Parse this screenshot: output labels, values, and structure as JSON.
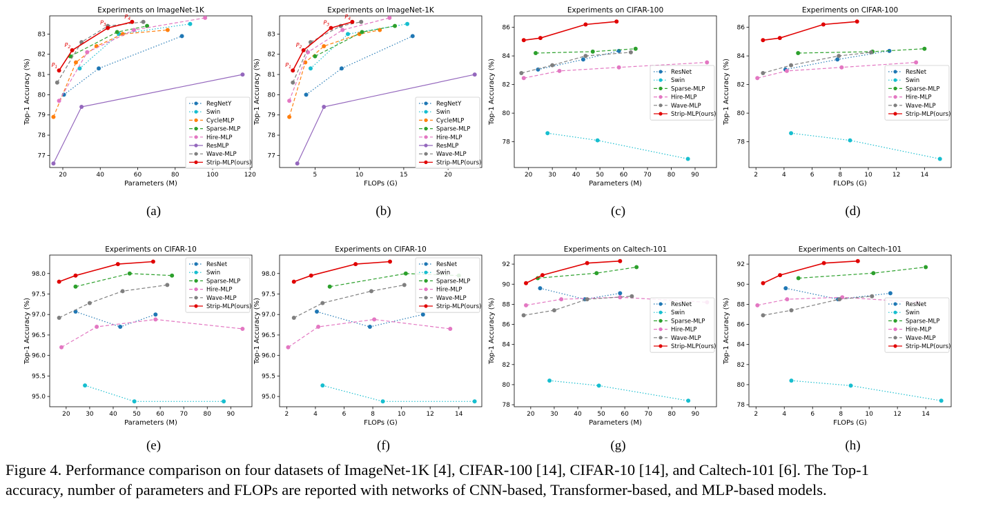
{
  "caption": {
    "line1": "Figure 4. Performance comparison on four datasets of ImageNet-1K [4], CIFAR-100 [14], CIFAR-10 [14], and Caltech-101 [6]. The Top-1",
    "line2": "accuracy, number of parameters and FLOPs are reported with networks of CNN-based, Transformer-based, and MLP-based models."
  },
  "colors": {
    "RegNetY": "#1f77b4",
    "ResNet": "#1f77b4",
    "Swin": "#17becf",
    "CycleMLP": "#ff7f0e",
    "Sparse-MLP": "#2ca02c",
    "Hire-MLP": "#e377c2",
    "ResMLP": "#9467bd",
    "Wave-MLP": "#7f7f7f",
    "Strip-MLP(ours)": "#e00000"
  },
  "chart_data": [
    {
      "id": "a",
      "type": "line",
      "sublabel": "(a)",
      "title": "Experiments on ImageNet-1K",
      "xlabel": "Parameters (M)",
      "ylabel": "Top-1 Accuracy (%)",
      "xlim": [
        13,
        121
      ],
      "ylim": [
        76.4,
        83.9
      ],
      "xticks": [
        20,
        40,
        60,
        80,
        100,
        120
      ],
      "yticks": [
        77,
        78,
        79,
        80,
        81,
        82,
        83
      ],
      "series": [
        {
          "name": "RegNetY",
          "x": [
            20.6,
            39.2,
            83.6
          ],
          "y": [
            80.0,
            81.3,
            82.9
          ]
        },
        {
          "name": "Swin",
          "x": [
            29,
            50,
            88
          ],
          "y": [
            81.3,
            83.0,
            83.5
          ]
        },
        {
          "name": "CycleMLP",
          "x": [
            15,
            27,
            38,
            52,
            76
          ],
          "y": [
            78.9,
            81.6,
            82.4,
            83.0,
            83.2
          ]
        },
        {
          "name": "Sparse-MLP",
          "x": [
            24,
            49,
            65
          ],
          "y": [
            81.9,
            83.1,
            83.4
          ]
        },
        {
          "name": "Hire-MLP",
          "x": [
            18,
            33,
            58,
            96
          ],
          "y": [
            79.7,
            82.1,
            83.2,
            83.8
          ]
        },
        {
          "name": "ResMLP",
          "x": [
            15,
            30,
            116
          ],
          "y": [
            76.6,
            79.4,
            81.0
          ]
        },
        {
          "name": "Wave-MLP",
          "x": [
            17,
            30,
            44,
            63
          ],
          "y": [
            80.6,
            82.6,
            83.4,
            83.6
          ]
        },
        {
          "name": "Strip-MLP(ours)",
          "x": [
            18,
            25,
            44,
            57
          ],
          "y": [
            81.2,
            82.2,
            83.3,
            83.6
          ]
        }
      ],
      "point_labels": [
        "P1",
        "P2",
        "P3",
        "P4"
      ],
      "legend": "lower-right"
    },
    {
      "id": "b",
      "type": "line",
      "sublabel": "(b)",
      "title": "Experiments on ImageNet-1K",
      "xlabel": "FLOPs (G)",
      "ylabel": "Top-1 Accuracy (%)",
      "xlim": [
        1.0,
        23.8
      ],
      "ylim": [
        76.4,
        83.9
      ],
      "xticks": [
        5,
        10,
        15,
        20
      ],
      "yticks": [
        77,
        78,
        79,
        80,
        81,
        82,
        83
      ],
      "series": [
        {
          "name": "RegNetY",
          "x": [
            4.0,
            8.0,
            16.0
          ],
          "y": [
            80.0,
            81.3,
            82.9
          ]
        },
        {
          "name": "Swin",
          "x": [
            4.5,
            8.7,
            15.4
          ],
          "y": [
            81.3,
            83.0,
            83.5
          ]
        },
        {
          "name": "CycleMLP",
          "x": [
            2.1,
            3.9,
            6.0,
            10.0,
            12.3
          ],
          "y": [
            78.9,
            81.6,
            82.4,
            83.0,
            83.2
          ]
        },
        {
          "name": "Sparse-MLP",
          "x": [
            5.0,
            10.3,
            14.0
          ],
          "y": [
            81.9,
            83.1,
            83.4
          ]
        },
        {
          "name": "Hire-MLP",
          "x": [
            2.1,
            4.2,
            8.1,
            13.4
          ],
          "y": [
            79.7,
            82.1,
            83.2,
            83.8
          ]
        },
        {
          "name": "ResMLP",
          "x": [
            3.0,
            6.0,
            23.0
          ],
          "y": [
            76.6,
            79.4,
            81.0
          ]
        },
        {
          "name": "Wave-MLP",
          "x": [
            2.5,
            4.5,
            7.9,
            10.2
          ],
          "y": [
            80.6,
            82.6,
            83.4,
            83.6
          ]
        },
        {
          "name": "Strip-MLP(ours)",
          "x": [
            2.5,
            3.7,
            6.8,
            9.2
          ],
          "y": [
            81.2,
            82.2,
            83.3,
            83.6
          ]
        }
      ],
      "point_labels": [
        "P1",
        "P2",
        "P3",
        "P4"
      ],
      "legend": "lower-right"
    },
    {
      "id": "c",
      "type": "line",
      "sublabel": "(c)",
      "title": "Experiments on CIFAR-100",
      "xlabel": "Parameters (M)",
      "ylabel": "Top-1 Accuracy (%)",
      "xlim": [
        14,
        99
      ],
      "ylim": [
        76.2,
        86.8
      ],
      "xticks": [
        20,
        30,
        40,
        50,
        60,
        70,
        80,
        90
      ],
      "yticks": [
        78,
        80,
        82,
        84,
        86
      ],
      "series": [
        {
          "name": "ResNet",
          "x": [
            24,
            43,
            58
          ],
          "y": [
            83.05,
            83.75,
            84.35
          ]
        },
        {
          "name": "Swin",
          "x": [
            28,
            49,
            87
          ],
          "y": [
            78.6,
            78.1,
            76.8
          ]
        },
        {
          "name": "Sparse-MLP",
          "x": [
            23,
            47,
            65
          ],
          "y": [
            84.2,
            84.3,
            84.5
          ]
        },
        {
          "name": "Hire-MLP",
          "x": [
            18,
            33,
            58,
            95
          ],
          "y": [
            82.45,
            82.95,
            83.2,
            83.55
          ]
        },
        {
          "name": "Wave-MLP",
          "x": [
            17,
            30,
            44,
            63
          ],
          "y": [
            82.8,
            83.35,
            84.0,
            84.25
          ]
        },
        {
          "name": "Strip-MLP(ours)",
          "x": [
            18,
            25,
            44,
            57
          ],
          "y": [
            85.1,
            85.25,
            86.2,
            86.4
          ]
        }
      ],
      "legend": "right"
    },
    {
      "id": "d",
      "type": "line",
      "sublabel": "(d)",
      "title": "Experiments on CIFAR-100",
      "xlabel": "FLOPs (G)",
      "ylabel": "Top-1 Accuracy (%)",
      "xlim": [
        1.5,
        15.9
      ],
      "ylim": [
        76.2,
        86.8
      ],
      "xticks": [
        2,
        4,
        6,
        8,
        10,
        12,
        14
      ],
      "yticks": [
        78,
        80,
        82,
        84,
        86
      ],
      "series": [
        {
          "name": "ResNet",
          "x": [
            4.1,
            7.8,
            11.5
          ],
          "y": [
            83.05,
            83.75,
            84.35
          ]
        },
        {
          "name": "Swin",
          "x": [
            4.5,
            8.7,
            15.1
          ],
          "y": [
            78.6,
            78.1,
            76.8
          ]
        },
        {
          "name": "Sparse-MLP",
          "x": [
            5.0,
            10.3,
            14.0
          ],
          "y": [
            84.2,
            84.3,
            84.5
          ]
        },
        {
          "name": "Hire-MLP",
          "x": [
            2.1,
            4.2,
            8.1,
            13.4
          ],
          "y": [
            82.45,
            82.95,
            83.2,
            83.55
          ]
        },
        {
          "name": "Wave-MLP",
          "x": [
            2.5,
            4.5,
            7.9,
            10.2
          ],
          "y": [
            82.8,
            83.35,
            84.0,
            84.25
          ]
        },
        {
          "name": "Strip-MLP(ours)",
          "x": [
            2.5,
            3.7,
            6.8,
            9.2
          ],
          "y": [
            85.1,
            85.25,
            86.2,
            86.4
          ]
        }
      ],
      "legend": "right"
    },
    {
      "id": "e",
      "type": "line",
      "sublabel": "(e)",
      "title": "Experiments on CIFAR-10",
      "xlabel": "Parameters (M)",
      "ylabel": "Top-1 Accuracy (%)",
      "xlim": [
        13,
        99
      ],
      "ylim": [
        94.75,
        98.45
      ],
      "xticks": [
        20,
        30,
        40,
        50,
        60,
        70,
        80,
        90
      ],
      "yticks": [
        95.0,
        95.5,
        96.0,
        96.5,
        97.0,
        97.5,
        98.0
      ],
      "series": [
        {
          "name": "ResNet",
          "x": [
            24,
            43,
            58
          ],
          "y": [
            97.07,
            96.7,
            97.0
          ]
        },
        {
          "name": "Swin",
          "x": [
            28,
            49,
            87
          ],
          "y": [
            95.27,
            94.88,
            94.88
          ]
        },
        {
          "name": "Sparse-MLP",
          "x": [
            24,
            47,
            65
          ],
          "y": [
            97.68,
            98.0,
            97.95
          ]
        },
        {
          "name": "Hire-MLP",
          "x": [
            18,
            33,
            58,
            95
          ],
          "y": [
            96.2,
            96.7,
            96.88,
            96.65
          ]
        },
        {
          "name": "Wave-MLP",
          "x": [
            17,
            30,
            44,
            63
          ],
          "y": [
            96.92,
            97.28,
            97.57,
            97.72
          ]
        },
        {
          "name": "Strip-MLP(ours)",
          "x": [
            17,
            24,
            42,
            57
          ],
          "y": [
            97.8,
            97.95,
            98.23,
            98.29
          ]
        }
      ],
      "legend": "top-right"
    },
    {
      "id": "f",
      "type": "line",
      "sublabel": "(f)",
      "title": "Experiments on CIFAR-10",
      "xlabel": "FLOPs (G)",
      "ylabel": "Top-1 Accuracy (%)",
      "xlim": [
        1.5,
        15.6
      ],
      "ylim": [
        94.75,
        98.45
      ],
      "xticks": [
        2,
        4,
        6,
        8,
        10,
        12,
        14
      ],
      "yticks": [
        95.0,
        95.5,
        96.0,
        96.5,
        97.0,
        97.5,
        98.0
      ],
      "series": [
        {
          "name": "ResNet",
          "x": [
            4.1,
            7.8,
            11.5
          ],
          "y": [
            97.07,
            96.7,
            97.0
          ]
        },
        {
          "name": "Swin",
          "x": [
            4.5,
            8.7,
            15.1
          ],
          "y": [
            95.27,
            94.88,
            94.88
          ]
        },
        {
          "name": "Sparse-MLP",
          "x": [
            5.0,
            10.3,
            14.0
          ],
          "y": [
            97.68,
            98.0,
            97.95
          ]
        },
        {
          "name": "Hire-MLP",
          "x": [
            2.1,
            4.2,
            8.1,
            13.4
          ],
          "y": [
            96.2,
            96.7,
            96.88,
            96.65
          ]
        },
        {
          "name": "Wave-MLP",
          "x": [
            2.5,
            4.5,
            7.9,
            10.2
          ],
          "y": [
            96.92,
            97.28,
            97.57,
            97.72
          ]
        },
        {
          "name": "Strip-MLP(ours)",
          "x": [
            2.5,
            3.7,
            6.8,
            9.2
          ],
          "y": [
            97.8,
            97.95,
            98.23,
            98.29
          ]
        }
      ],
      "legend": "top-right"
    },
    {
      "id": "g",
      "type": "line",
      "sublabel": "(g)",
      "title": "Experiments on Caltech-101",
      "xlabel": "Parameters (M)",
      "ylabel": "Top-1 Accuracy (%)",
      "xlim": [
        13,
        99
      ],
      "ylim": [
        77.8,
        92.9
      ],
      "xticks": [
        20,
        30,
        40,
        50,
        60,
        70,
        80,
        90
      ],
      "yticks": [
        78,
        80,
        82,
        84,
        86,
        88,
        90,
        92
      ],
      "series": [
        {
          "name": "ResNet",
          "x": [
            24,
            43,
            58
          ],
          "y": [
            89.6,
            88.5,
            89.1
          ]
        },
        {
          "name": "Swin",
          "x": [
            28,
            49,
            87
          ],
          "y": [
            80.4,
            79.9,
            78.4
          ]
        },
        {
          "name": "Sparse-MLP",
          "x": [
            23,
            48,
            65
          ],
          "y": [
            90.6,
            91.1,
            91.7
          ]
        },
        {
          "name": "Hire-MLP",
          "x": [
            18,
            33,
            58,
            95
          ],
          "y": [
            87.9,
            88.5,
            88.7,
            88.2
          ]
        },
        {
          "name": "Wave-MLP",
          "x": [
            17,
            30,
            44,
            63
          ],
          "y": [
            86.9,
            87.4,
            88.5,
            88.8
          ]
        },
        {
          "name": "Strip-MLP(ours)",
          "x": [
            18,
            25,
            44,
            58
          ],
          "y": [
            90.1,
            90.9,
            92.1,
            92.3
          ]
        }
      ],
      "legend": "center-right"
    },
    {
      "id": "h",
      "type": "line",
      "sublabel": "(h)",
      "title": "Experiments on Caltech-101",
      "xlabel": "FLOPs (G)",
      "ylabel": "Top-1 Accuracy (%)",
      "xlim": [
        1.5,
        15.8
      ],
      "ylim": [
        77.8,
        92.9
      ],
      "xticks": [
        2,
        4,
        6,
        8,
        10,
        12,
        14
      ],
      "yticks": [
        78,
        80,
        82,
        84,
        86,
        88,
        90,
        92
      ],
      "series": [
        {
          "name": "ResNet",
          "x": [
            4.1,
            7.8,
            11.5
          ],
          "y": [
            89.6,
            88.5,
            89.1
          ]
        },
        {
          "name": "Swin",
          "x": [
            4.5,
            8.7,
            15.1
          ],
          "y": [
            80.4,
            79.9,
            78.4
          ]
        },
        {
          "name": "Sparse-MLP",
          "x": [
            5.0,
            10.3,
            14.0
          ],
          "y": [
            90.6,
            91.1,
            91.7
          ]
        },
        {
          "name": "Hire-MLP",
          "x": [
            2.1,
            4.2,
            8.1,
            13.4
          ],
          "y": [
            87.9,
            88.5,
            88.7,
            88.2
          ]
        },
        {
          "name": "Wave-MLP",
          "x": [
            2.5,
            4.5,
            7.9,
            10.2
          ],
          "y": [
            86.9,
            87.4,
            88.5,
            88.8
          ]
        },
        {
          "name": "Strip-MLP(ours)",
          "x": [
            2.5,
            3.7,
            6.8,
            9.2
          ],
          "y": [
            90.1,
            90.9,
            92.1,
            92.3
          ]
        }
      ],
      "legend": "center-right"
    }
  ]
}
